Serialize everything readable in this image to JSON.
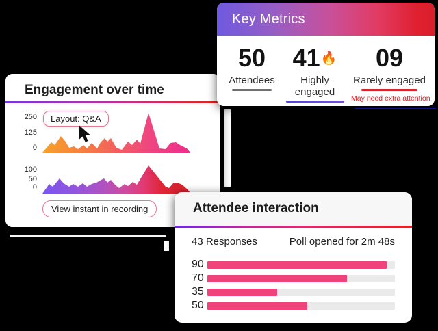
{
  "colors": {
    "background": "#000000",
    "accent_pink": "#F0437C",
    "bar_track": "#EAEAEA",
    "alert_red": "#D7242B",
    "header_gradient": [
      "#6E5AE0",
      "#C9509A",
      "#D91F2A"
    ],
    "divider_gradient": [
      "#7636E0",
      "#C42F8C",
      "#E02318"
    ],
    "chart1_gradient": [
      "#F6A228",
      "#ED2F8C"
    ],
    "chart2_gradient": [
      "#7A55EE",
      "#D7232B"
    ]
  },
  "key_metrics": {
    "title": "Key Metrics",
    "stats": [
      {
        "value": "50",
        "label": "Attendees"
      },
      {
        "value": "41",
        "fire_icon": "🔥",
        "label": "Highly engaged"
      },
      {
        "value": "09",
        "label": "Rarely engaged",
        "note": "May need extra attention"
      }
    ]
  },
  "engagement": {
    "title": "Engagement over time",
    "tooltip_label": "Layout: Q&A",
    "button_label": "View instant in recording",
    "chart1_yticks": [
      "250",
      "125",
      "0"
    ],
    "chart2_yticks": [
      "100",
      "50",
      "0"
    ]
  },
  "attendee": {
    "title": "Attendee interaction",
    "responses_label": "43 Responses",
    "poll_label": "Poll opened for 2m 48s",
    "bar_labels": [
      "90",
      "70",
      "35",
      "50"
    ]
  },
  "chart_data": [
    {
      "type": "area",
      "card": "Engagement over time",
      "series_note": "upper engagement curve, stylized area chart, orange-to-pink gradient",
      "ytick_labels": [
        250,
        125,
        0
      ],
      "ylim": [
        0,
        250
      ],
      "values_approx": [
        0,
        81,
        60,
        130,
        92,
        38,
        49,
        27,
        60,
        33,
        76,
        33,
        81,
        114,
        87,
        114,
        38,
        22,
        87,
        60,
        103,
        76,
        315,
        33,
        27,
        76,
        81,
        60,
        33,
        5
      ],
      "grid": false,
      "legend": false
    },
    {
      "type": "area",
      "card": "Engagement over time",
      "series_note": "lower attendance curve, stylized area chart, violet-to-red gradient",
      "ytick_labels": [
        100,
        50,
        0
      ],
      "ylim": [
        0,
        100
      ],
      "values_approx": [
        0,
        42,
        27,
        73,
        46,
        27,
        42,
        27,
        46,
        27,
        42,
        50,
        62,
        73,
        50,
        65,
        38,
        19,
        42,
        31,
        54,
        38,
        146,
        27,
        19,
        46,
        50,
        38,
        12,
        0
      ],
      "grid": false,
      "legend": false
    },
    {
      "type": "bar",
      "card": "Attendee interaction",
      "orientation": "horizontal",
      "categories": [
        "90",
        "70",
        "35",
        "50"
      ],
      "values": [
        90,
        70,
        35,
        50
      ],
      "xlim": [
        0,
        94
      ],
      "bar_color": "#F0437C",
      "track_color": "#EAEAEA",
      "grid": false,
      "legend": false
    }
  ]
}
